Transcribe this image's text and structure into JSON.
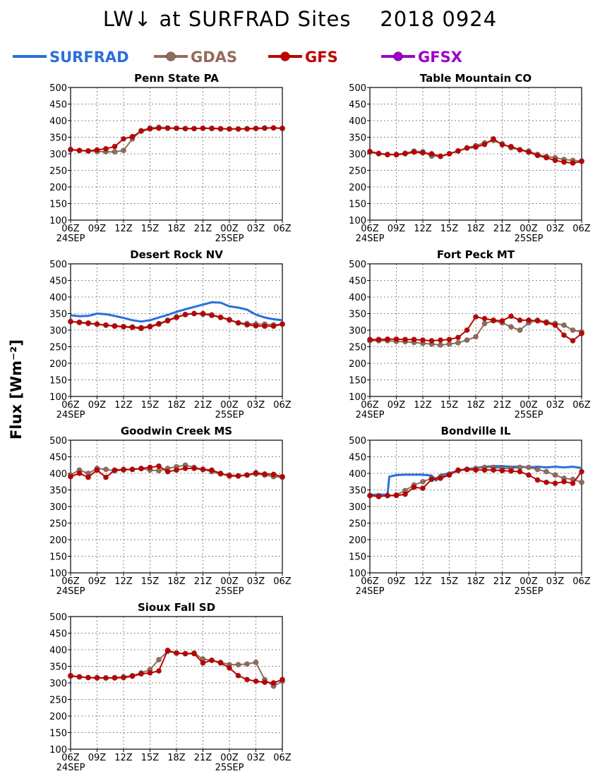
{
  "title": "LW↓ at SURFRAD Sites    2018 0924",
  "ylabel": "Flux [Wm⁻²]",
  "legend": [
    {
      "name": "SURFRAD",
      "color": "#2a6fdb",
      "marker": false
    },
    {
      "name": "GDAS",
      "color": "#936b5b",
      "marker": true
    },
    {
      "name": "GFS",
      "color": "#c00000",
      "marker": true
    },
    {
      "name": "GFSX",
      "color": "#9b00c8",
      "marker": true
    }
  ],
  "colors": {
    "SURFRAD": "#2a6fdb",
    "GDAS": "#936b5b",
    "GFS": "#c00000",
    "GFSX": "#9b00c8"
  },
  "chart_data": [
    {
      "type": "line",
      "title": "Penn State PA",
      "ylim": [
        100,
        500
      ],
      "yticks": [
        100,
        150,
        200,
        250,
        300,
        350,
        400,
        450,
        500
      ],
      "xticks": [
        "06Z",
        "09Z",
        "12Z",
        "15Z",
        "18Z",
        "21Z",
        "00Z",
        "03Z",
        "06Z"
      ],
      "xdates": [
        {
          "tick": 0,
          "label": "24SEP"
        },
        {
          "tick": 6,
          "label": "25SEP"
        }
      ],
      "grid": true,
      "x_hours": [
        0,
        1,
        2,
        3,
        4,
        5,
        6,
        7,
        8,
        9,
        10,
        11,
        12,
        13,
        14,
        15,
        16,
        17,
        18,
        19,
        20,
        21,
        22,
        23,
        24
      ],
      "series": [
        {
          "name": "GDAS",
          "values": [
            312,
            310,
            308,
            307,
            306,
            306,
            310,
            345,
            370,
            378,
            380,
            378,
            377,
            376,
            376,
            377,
            376,
            375,
            375,
            375,
            376,
            377,
            378,
            378,
            376
          ]
        },
        {
          "name": "GFS",
          "values": [
            313,
            310,
            309,
            312,
            315,
            322,
            345,
            352,
            368,
            375,
            377,
            377,
            377,
            376,
            376,
            377,
            377,
            376,
            375,
            375,
            375,
            376,
            377,
            378,
            377
          ]
        }
      ]
    },
    {
      "type": "line",
      "title": "Table Mountain CO",
      "ylim": [
        100,
        500
      ],
      "yticks": [
        100,
        150,
        200,
        250,
        300,
        350,
        400,
        450,
        500
      ],
      "xticks": [
        "06Z",
        "09Z",
        "12Z",
        "15Z",
        "18Z",
        "21Z",
        "00Z",
        "03Z",
        "06Z"
      ],
      "xdates": [
        {
          "tick": 0,
          "label": "24SEP"
        },
        {
          "tick": 6,
          "label": "25SEP"
        }
      ],
      "grid": true,
      "x_hours": [
        0,
        1,
        2,
        3,
        4,
        5,
        6,
        7,
        8,
        9,
        10,
        11,
        12,
        13,
        14,
        15,
        16,
        17,
        18,
        19,
        20,
        21,
        22,
        23,
        24
      ],
      "series": [
        {
          "name": "GDAS",
          "values": [
            305,
            300,
            297,
            298,
            302,
            308,
            306,
            293,
            293,
            300,
            308,
            318,
            325,
            333,
            340,
            330,
            318,
            312,
            308,
            298,
            292,
            288,
            283,
            280,
            278
          ]
        },
        {
          "name": "GFS",
          "values": [
            307,
            301,
            298,
            297,
            300,
            305,
            303,
            300,
            292,
            300,
            309,
            317,
            320,
            328,
            345,
            327,
            322,
            312,
            305,
            295,
            288,
            280,
            275,
            272,
            277
          ]
        }
      ]
    },
    {
      "type": "line",
      "title": "Desert Rock NV",
      "ylim": [
        100,
        500
      ],
      "yticks": [
        100,
        150,
        200,
        250,
        300,
        350,
        400,
        450,
        500
      ],
      "xticks": [
        "06Z",
        "09Z",
        "12Z",
        "15Z",
        "18Z",
        "21Z",
        "00Z",
        "03Z",
        "06Z"
      ],
      "xdates": [
        {
          "tick": 0,
          "label": "24SEP"
        },
        {
          "tick": 6,
          "label": "25SEP"
        }
      ],
      "grid": true,
      "x_hours": [
        0,
        1,
        2,
        3,
        4,
        5,
        6,
        7,
        8,
        9,
        10,
        11,
        12,
        13,
        14,
        15,
        16,
        17,
        18,
        19,
        20,
        21,
        22,
        23,
        24
      ],
      "series": [
        {
          "name": "SURFRAD",
          "values": [
            345,
            342,
            343,
            350,
            348,
            343,
            337,
            330,
            326,
            330,
            338,
            346,
            355,
            363,
            370,
            377,
            384,
            383,
            372,
            368,
            362,
            347,
            338,
            333,
            330
          ]
        },
        {
          "name": "GDAS",
          "values": [
            326,
            324,
            322,
            318,
            315,
            313,
            311,
            310,
            308,
            312,
            320,
            330,
            340,
            347,
            350,
            348,
            344,
            338,
            330,
            322,
            320,
            318,
            318,
            316,
            318
          ]
        },
        {
          "name": "GFS",
          "values": [
            326,
            323,
            320,
            318,
            315,
            312,
            310,
            308,
            305,
            310,
            318,
            328,
            338,
            347,
            350,
            350,
            346,
            339,
            332,
            322,
            316,
            313,
            312,
            312,
            318
          ]
        }
      ]
    },
    {
      "type": "line",
      "title": "Fort Peck MT",
      "ylim": [
        100,
        500
      ],
      "yticks": [
        100,
        150,
        200,
        250,
        300,
        350,
        400,
        450,
        500
      ],
      "xticks": [
        "06Z",
        "09Z",
        "12Z",
        "15Z",
        "18Z",
        "21Z",
        "00Z",
        "03Z",
        "06Z"
      ],
      "xdates": [
        {
          "tick": 0,
          "label": "24SEP"
        },
        {
          "tick": 6,
          "label": "25SEP"
        }
      ],
      "grid": true,
      "x_hours": [
        0,
        1,
        2,
        3,
        4,
        5,
        6,
        7,
        8,
        9,
        10,
        11,
        12,
        13,
        14,
        15,
        16,
        17,
        18,
        19,
        20,
        21,
        22,
        23,
        24
      ],
      "series": [
        {
          "name": "GDAS",
          "values": [
            268,
            268,
            268,
            266,
            265,
            263,
            260,
            258,
            255,
            258,
            262,
            270,
            280,
            320,
            328,
            322,
            310,
            300,
            322,
            330,
            325,
            320,
            315,
            300,
            295
          ]
        },
        {
          "name": "GFS",
          "values": [
            272,
            272,
            273,
            273,
            272,
            272,
            270,
            268,
            270,
            272,
            278,
            300,
            340,
            335,
            330,
            328,
            342,
            330,
            330,
            328,
            322,
            315,
            285,
            268,
            290
          ]
        }
      ]
    },
    {
      "type": "line",
      "title": "Goodwin Creek MS",
      "ylim": [
        100,
        500
      ],
      "yticks": [
        100,
        150,
        200,
        250,
        300,
        350,
        400,
        450,
        500
      ],
      "xticks": [
        "06Z",
        "09Z",
        "12Z",
        "15Z",
        "18Z",
        "21Z",
        "00Z",
        "03Z",
        "06Z"
      ],
      "xdates": [
        {
          "tick": 0,
          "label": "24SEP"
        },
        {
          "tick": 6,
          "label": "25SEP"
        }
      ],
      "grid": true,
      "x_hours": [
        0,
        1,
        2,
        3,
        4,
        5,
        6,
        7,
        8,
        9,
        10,
        11,
        12,
        13,
        14,
        15,
        16,
        17,
        18,
        19,
        20,
        21,
        22,
        23,
        24
      ],
      "series": [
        {
          "name": "GDAS",
          "values": [
            395,
            410,
            400,
            415,
            412,
            408,
            410,
            412,
            414,
            410,
            408,
            415,
            420,
            425,
            418,
            412,
            405,
            398,
            395,
            393,
            395,
            398,
            395,
            390,
            388
          ]
        },
        {
          "name": "GFS",
          "values": [
            390,
            400,
            388,
            410,
            388,
            410,
            412,
            412,
            415,
            418,
            422,
            405,
            410,
            415,
            415,
            412,
            410,
            400,
            392,
            392,
            395,
            402,
            398,
            397,
            390
          ]
        }
      ]
    },
    {
      "type": "line",
      "title": "Bondville IL",
      "ylim": [
        100,
        500
      ],
      "yticks": [
        100,
        150,
        200,
        250,
        300,
        350,
        400,
        450,
        500
      ],
      "xticks": [
        "06Z",
        "09Z",
        "12Z",
        "15Z",
        "18Z",
        "21Z",
        "00Z",
        "03Z",
        "06Z"
      ],
      "xdates": [
        {
          "tick": 0,
          "label": "24SEP"
        },
        {
          "tick": 6,
          "label": "25SEP"
        }
      ],
      "grid": true,
      "x_hours": [
        0,
        1,
        2,
        2.2,
        3,
        4,
        5,
        6,
        7,
        7.5,
        8,
        9,
        10,
        11,
        12,
        13,
        14,
        15,
        16,
        17,
        18,
        19,
        20,
        21,
        22,
        23,
        24
      ],
      "series": [
        {
          "name": "SURFRAD",
          "values": [
            335,
            336,
            336,
            390,
            395,
            396,
            396,
            396,
            393,
            378,
            395,
            400,
            408,
            413,
            416,
            420,
            422,
            422,
            420,
            420,
            418,
            420,
            418,
            420,
            418,
            420,
            416
          ]
        },
        {
          "name": "GDAS",
          "x_hours": [
            0,
            1,
            2,
            3,
            4,
            5,
            6,
            7,
            8,
            9,
            10,
            11,
            12,
            13,
            14,
            15,
            16,
            17,
            18,
            19,
            20,
            21,
            22,
            23,
            24
          ],
          "values": [
            333,
            333,
            333,
            335,
            348,
            365,
            375,
            385,
            390,
            398,
            408,
            412,
            415,
            418,
            418,
            415,
            415,
            418,
            418,
            412,
            405,
            395,
            385,
            382,
            373
          ]
        },
        {
          "name": "GFS",
          "x_hours": [
            0,
            1,
            2,
            3,
            4,
            5,
            6,
            7,
            8,
            9,
            10,
            11,
            12,
            13,
            14,
            15,
            16,
            17,
            18,
            19,
            20,
            21,
            22,
            23,
            24
          ],
          "values": [
            333,
            330,
            333,
            333,
            337,
            358,
            355,
            382,
            385,
            395,
            410,
            412,
            410,
            410,
            410,
            408,
            407,
            405,
            395,
            380,
            373,
            370,
            375,
            370,
            405
          ]
        }
      ]
    },
    {
      "type": "line",
      "title": "Sioux Fall SD",
      "ylim": [
        100,
        500
      ],
      "yticks": [
        100,
        150,
        200,
        250,
        300,
        350,
        400,
        450,
        500
      ],
      "xticks": [
        "06Z",
        "09Z",
        "12Z",
        "15Z",
        "18Z",
        "21Z",
        "00Z",
        "03Z",
        "06Z"
      ],
      "xdates": [
        {
          "tick": 0,
          "label": "24SEP"
        },
        {
          "tick": 6,
          "label": "25SEP"
        }
      ],
      "grid": true,
      "x_hours": [
        0,
        1,
        2,
        3,
        4,
        5,
        6,
        7,
        8,
        9,
        10,
        11,
        12,
        13,
        14,
        15,
        16,
        17,
        18,
        19,
        20,
        21,
        22,
        23,
        24
      ],
      "series": [
        {
          "name": "GDAS",
          "values": [
            320,
            318,
            316,
            316,
            315,
            316,
            318,
            322,
            330,
            340,
            370,
            395,
            390,
            388,
            390,
            372,
            368,
            362,
            355,
            355,
            357,
            362,
            310,
            290,
            305
          ]
        },
        {
          "name": "GFS",
          "values": [
            322,
            318,
            316,
            315,
            315,
            315,
            316,
            320,
            327,
            330,
            336,
            398,
            390,
            388,
            388,
            360,
            368,
            360,
            345,
            322,
            310,
            305,
            302,
            300,
            310
          ]
        }
      ]
    }
  ]
}
